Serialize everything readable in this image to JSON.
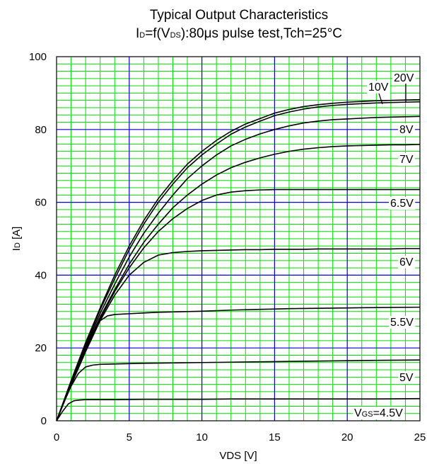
{
  "chart_data": {
    "type": "line",
    "title_line1": "Typical Output Characteristics",
    "title_line2": "ID=f(VDS):80μs pulse test,Tch=25°C",
    "xlabel": "VDS [V]",
    "ylabel": "ID [A]",
    "xlim": [
      0,
      25
    ],
    "ylim": [
      0,
      100
    ],
    "x_ticks": [
      "0",
      "5",
      "10",
      "15",
      "20",
      "25"
    ],
    "y_ticks": [
      "0",
      "20",
      "40",
      "60",
      "80",
      "100"
    ],
    "grid": true,
    "colors": {
      "minor_grid": "#00dd00",
      "major_grid": "#0000cc",
      "curve": "#000000"
    },
    "series": [
      {
        "name": "20V",
        "x": [
          0,
          1,
          2,
          3,
          4,
          5,
          6,
          7,
          8,
          9,
          10,
          11,
          12,
          13,
          14,
          15,
          16,
          17,
          18,
          19,
          20,
          21,
          22,
          23,
          24,
          25
        ],
        "values": [
          0,
          11,
          21.5,
          31,
          40,
          48,
          55,
          61,
          66,
          70.5,
          74,
          77,
          79.5,
          81.5,
          83,
          84.5,
          85.5,
          86.3,
          86.8,
          87.2,
          87.5,
          87.7,
          87.9,
          88,
          88.1,
          88.2
        ]
      },
      {
        "name": "10V",
        "x": [
          0,
          1,
          2,
          3,
          4,
          5,
          6,
          7,
          8,
          9,
          10,
          11,
          12,
          13,
          14,
          15,
          16,
          17,
          18,
          19,
          20,
          21,
          22,
          23,
          24,
          25
        ],
        "values": [
          0,
          10.8,
          21,
          30.5,
          39,
          47,
          54,
          60,
          65,
          69.5,
          73,
          76,
          78.7,
          80.7,
          82.3,
          83.8,
          84.8,
          85.6,
          86.2,
          86.6,
          86.9,
          87.1,
          87.3,
          87.4,
          87.5,
          87.6
        ]
      },
      {
        "name": "8V",
        "x": [
          0,
          1,
          2,
          3,
          4,
          5,
          6,
          7,
          8,
          9,
          10,
          11,
          12,
          13,
          14,
          15,
          16,
          17,
          18,
          19,
          20,
          21,
          22,
          23,
          24,
          25
        ],
        "values": [
          0,
          10.5,
          20.5,
          29.5,
          37.5,
          45,
          51.5,
          57,
          62,
          66.5,
          70,
          73,
          75.5,
          77.3,
          78.8,
          80,
          81,
          81.8,
          82.3,
          82.7,
          82.9,
          83.1,
          83.3,
          83.4,
          83.5,
          83.6
        ]
      },
      {
        "name": "7V",
        "x": [
          0,
          1,
          2,
          3,
          4,
          5,
          6,
          7,
          8,
          9,
          10,
          11,
          12,
          13,
          14,
          15,
          16,
          17,
          18,
          19,
          20,
          21,
          22,
          23,
          24,
          25
        ],
        "values": [
          0,
          10.2,
          20,
          28.5,
          36,
          43,
          49,
          54,
          58.5,
          62,
          65,
          67.5,
          69.5,
          71,
          72.2,
          73.2,
          74,
          74.6,
          75,
          75.3,
          75.5,
          75.6,
          75.7,
          75.8,
          75.8,
          75.9
        ]
      },
      {
        "name": "6.5V",
        "x": [
          0,
          1,
          2,
          3,
          4,
          5,
          6,
          7,
          8,
          9,
          10,
          11,
          12,
          13,
          14,
          15,
          16,
          17,
          18,
          19,
          20,
          21,
          22,
          23,
          24,
          25
        ],
        "values": [
          0,
          10,
          19.5,
          28,
          35.5,
          42,
          47.5,
          52,
          55.5,
          58.3,
          60.5,
          62,
          62.8,
          63.2,
          63.4,
          63.5,
          63.5,
          63.5,
          63.5,
          63.5,
          63.5,
          63.5,
          63.5,
          63.5,
          63.5,
          63.5
        ]
      },
      {
        "name": "6V",
        "x": [
          0,
          1,
          2,
          3,
          4,
          5,
          6,
          7,
          8,
          9,
          10,
          11,
          12,
          13,
          14,
          15,
          16,
          17,
          18,
          19,
          20,
          21,
          22,
          23,
          24,
          25
        ],
        "values": [
          0,
          9.8,
          19,
          27.5,
          34.5,
          40,
          43.5,
          45.5,
          46.2,
          46.5,
          46.7,
          46.8,
          46.9,
          47,
          47,
          47.1,
          47.1,
          47.1,
          47.2,
          47.2,
          47.2,
          47.2,
          47.2,
          47.2,
          47.3,
          47.3
        ]
      },
      {
        "name": "5.5V",
        "x": [
          0,
          0.5,
          1,
          1.5,
          2,
          2.5,
          3,
          3.5,
          4,
          5,
          6,
          7,
          8,
          10,
          12,
          14,
          16,
          18,
          20,
          22,
          25
        ],
        "values": [
          0,
          5,
          10,
          15,
          20,
          24.5,
          27.5,
          28.8,
          29.2,
          29.4,
          29.6,
          29.8,
          29.9,
          30.1,
          30.4,
          30.6,
          30.8,
          30.9,
          31,
          31.1,
          31.2
        ]
      },
      {
        "name": "5V",
        "x": [
          0,
          0.5,
          1,
          1.5,
          2,
          2.5,
          3,
          4,
          5,
          6,
          8,
          10,
          12,
          14,
          16,
          18,
          20,
          22,
          25
        ],
        "values": [
          0,
          5,
          9.5,
          13,
          14.8,
          15.3,
          15.5,
          15.6,
          15.7,
          15.8,
          15.9,
          16,
          16.1,
          16.2,
          16.3,
          16.4,
          16.5,
          16.6,
          16.7
        ]
      },
      {
        "name": "VGS=4.5V",
        "x": [
          0,
          0.4,
          0.8,
          1.2,
          1.6,
          2,
          3,
          4,
          6,
          8,
          10,
          12,
          15,
          18,
          20,
          22,
          25
        ],
        "values": [
          0,
          2.5,
          4.6,
          5.5,
          5.7,
          5.8,
          5.8,
          5.8,
          5.9,
          5.9,
          5.9,
          6,
          6,
          6,
          6,
          6,
          6.1
        ]
      }
    ]
  }
}
